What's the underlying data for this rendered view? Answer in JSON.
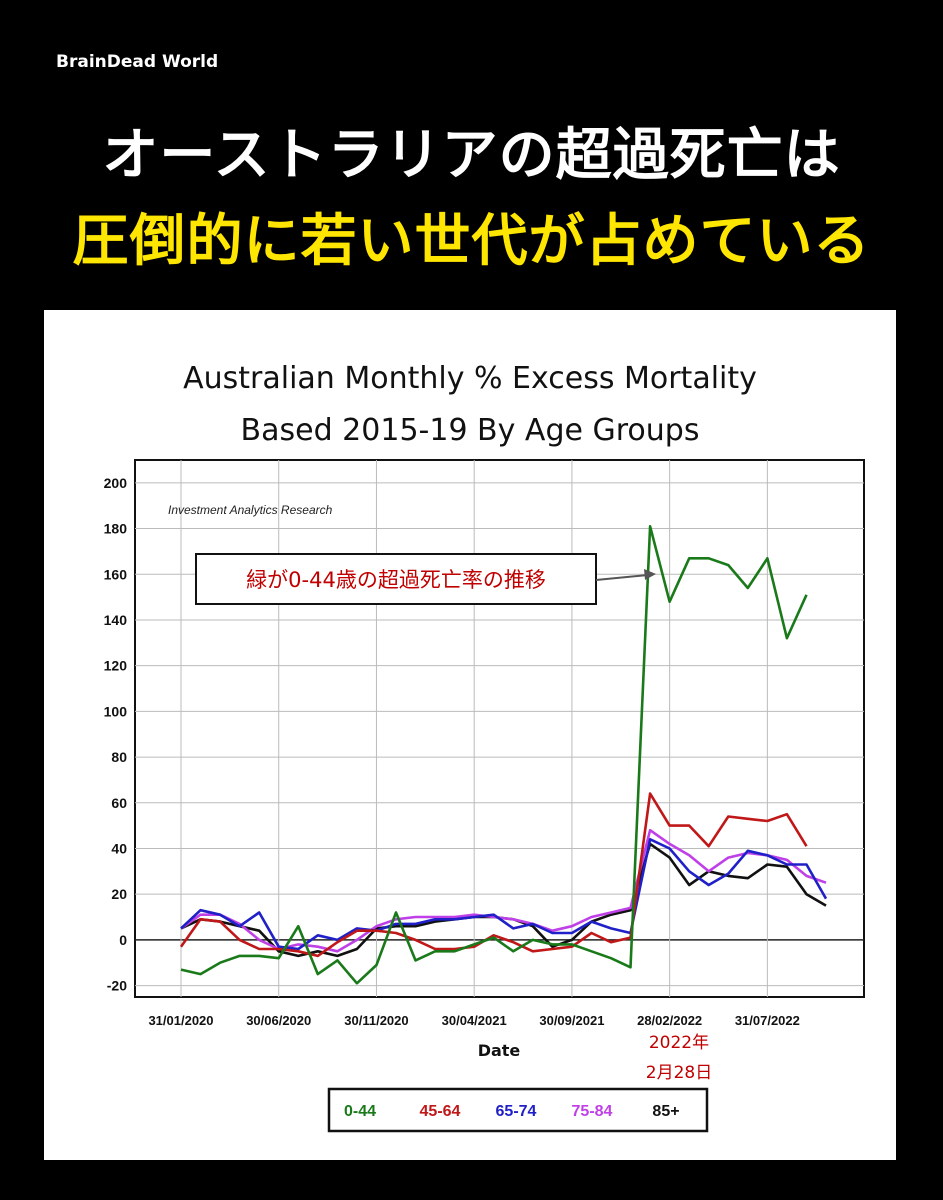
{
  "header": {
    "brand": "BrainDead World",
    "headline_line1": "オーストラリアの超過死亡は",
    "headline_line2": "圧倒的に若い世代が占めている"
  },
  "colors": {
    "background": "#000000",
    "headline_white": "#ffffff",
    "headline_yellow": "#ffe600",
    "annotation_red": "#c00000"
  },
  "annotations": {
    "callout": "緑が0-44歳の超過死亡率の推移",
    "date_note_line1": "2022年",
    "date_note_line2": "2月28日"
  },
  "chart_data": {
    "type": "line",
    "title_line1": "Australian Monthly % Excess Mortality",
    "title_line2": "Based 2015-19 By Age Groups",
    "source_note": "Investment Analytics Research",
    "xlabel": "Date",
    "ylabel": "",
    "ylim": [
      -25,
      210
    ],
    "yticks": [
      -20,
      0,
      20,
      40,
      60,
      80,
      100,
      120,
      140,
      160,
      180,
      200
    ],
    "ytick_labels": [
      "-20",
      "0",
      "20",
      "40",
      "60",
      "80",
      "100",
      "120",
      "140",
      "160",
      "180",
      "200"
    ],
    "xticks": [
      "31/01/2020",
      "30/06/2020",
      "30/11/2020",
      "30/04/2021",
      "30/09/2021",
      "28/02/2022",
      "31/07/2022"
    ],
    "grid": true,
    "legend_position": "bottom",
    "x": [
      "2020-01",
      "2020-02",
      "2020-03",
      "2020-04",
      "2020-05",
      "2020-06",
      "2020-07",
      "2020-08",
      "2020-09",
      "2020-10",
      "2020-11",
      "2020-12",
      "2021-01",
      "2021-02",
      "2021-03",
      "2021-04",
      "2021-05",
      "2021-06",
      "2021-07",
      "2021-08",
      "2021-09",
      "2021-10",
      "2021-11",
      "2021-12",
      "2022-01",
      "2022-02",
      "2022-03",
      "2022-04",
      "2022-05",
      "2022-06",
      "2022-07",
      "2022-08",
      "2022-09",
      "2022-10"
    ],
    "series": [
      {
        "name": "0-44",
        "color": "#1a7a1a",
        "values": [
          -13,
          -15,
          -10,
          -7,
          -7,
          -8,
          6,
          -15,
          -9,
          -19,
          -11,
          12,
          -9,
          -5,
          -5,
          -2,
          1,
          -5,
          0,
          -2,
          -2,
          -5,
          -8,
          -12,
          181,
          148,
          167,
          167,
          164,
          154,
          167,
          132,
          151,
          null
        ]
      },
      {
        "name": "45-64",
        "color": "#c01818",
        "values": [
          -3,
          9,
          8,
          0,
          -4,
          -4,
          -5,
          -7,
          -1,
          4,
          4,
          3,
          0,
          -4,
          -4,
          -3,
          2,
          -1,
          -5,
          -4,
          -3,
          3,
          -1,
          1,
          64,
          50,
          50,
          41,
          54,
          53,
          52,
          55,
          41,
          null
        ]
      },
      {
        "name": "65-74",
        "color": "#2020c8",
        "values": [
          5,
          13,
          11,
          6,
          12,
          -3,
          -4,
          2,
          0,
          5,
          4,
          7,
          7,
          9,
          9,
          10,
          11,
          5,
          7,
          3,
          3,
          8,
          5,
          3,
          44,
          40,
          30,
          24,
          29,
          39,
          37,
          33,
          33,
          18
        ]
      },
      {
        "name": "75-84",
        "color": "#c040e8",
        "values": [
          5,
          11,
          11,
          7,
          0,
          -4,
          -2,
          -3,
          -5,
          0,
          6,
          9,
          10,
          10,
          10,
          11,
          10,
          9,
          7,
          4,
          6,
          10,
          12,
          14,
          48,
          42,
          37,
          30,
          36,
          38,
          37,
          35,
          28,
          25
        ]
      },
      {
        "name": "85+",
        "color": "#111111",
        "values": [
          5,
          9,
          8,
          6,
          4,
          -5,
          -7,
          -5,
          -7,
          -4,
          5,
          6,
          6,
          8,
          9,
          10,
          10,
          9,
          6,
          -3,
          0,
          8,
          11,
          13,
          42,
          36,
          24,
          30,
          28,
          27,
          33,
          32,
          20,
          15
        ]
      }
    ]
  }
}
